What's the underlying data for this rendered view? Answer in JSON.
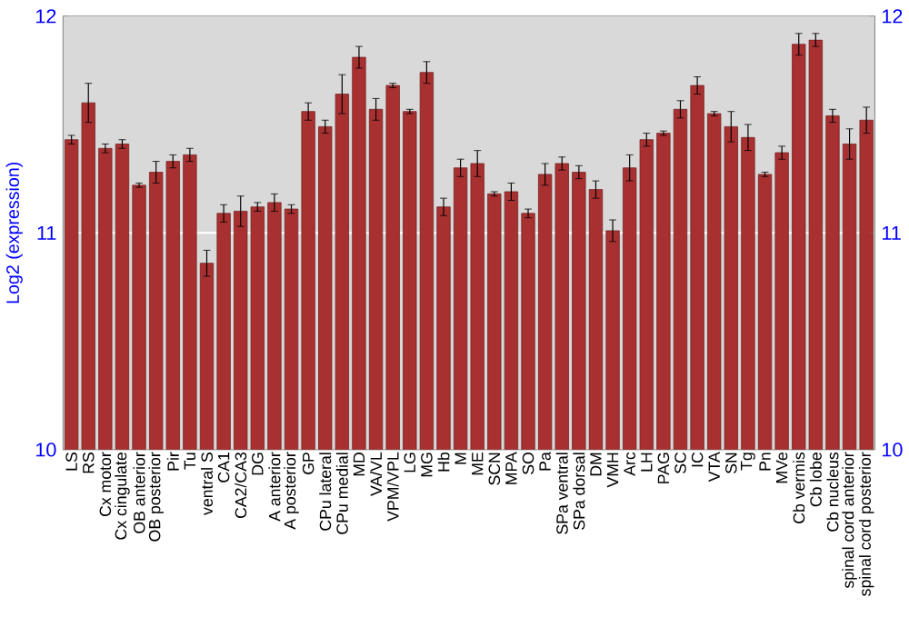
{
  "chart_data": {
    "type": "bar",
    "ylabel": "Log2 (expression)",
    "categories": [
      "LS",
      "RS",
      "Cx motor",
      "Cx cingulate",
      "OB anterior",
      "OB posterior",
      "Pir",
      "Tu",
      "ventral S",
      "CA1",
      "CA2/CA3",
      "DG",
      "A anterior",
      "A posterior",
      "GP",
      "CPu lateral",
      "CPu medial",
      "MD",
      "VA/VL",
      "VPM/VPL",
      "LG",
      "MG",
      "Hb",
      "M",
      "ME",
      "SCN",
      "MPA",
      "SO",
      "Pa",
      "SPa ventral",
      "SPa dorsal",
      "DM",
      "VMH",
      "Arc",
      "LH",
      "PAG",
      "SC",
      "IC",
      "VTA",
      "SN",
      "Tg",
      "Pn",
      "MVe",
      "Cb vermis",
      "Cb lobe",
      "Cb nucleus",
      "spinal cord anterior",
      "spinal cord posterior"
    ],
    "values": [
      11.43,
      11.6,
      11.39,
      11.41,
      11.22,
      11.28,
      11.33,
      11.36,
      10.86,
      11.09,
      11.1,
      11.12,
      11.14,
      11.11,
      11.56,
      11.49,
      11.64,
      11.81,
      11.57,
      11.68,
      11.56,
      11.74,
      11.12,
      11.3,
      11.32,
      11.18,
      11.19,
      11.09,
      11.27,
      11.32,
      11.28,
      11.2,
      11.01,
      11.3,
      11.43,
      11.46,
      11.57,
      11.68,
      11.55,
      11.49,
      11.44,
      11.27,
      11.37,
      11.87,
      11.89,
      11.54,
      11.41,
      11.52
    ],
    "errors": [
      0.02,
      0.09,
      0.02,
      0.02,
      0.01,
      0.05,
      0.03,
      0.03,
      0.06,
      0.04,
      0.07,
      0.02,
      0.04,
      0.02,
      0.04,
      0.03,
      0.09,
      0.05,
      0.05,
      0.01,
      0.01,
      0.05,
      0.04,
      0.04,
      0.06,
      0.01,
      0.04,
      0.02,
      0.05,
      0.03,
      0.03,
      0.04,
      0.05,
      0.06,
      0.03,
      0.01,
      0.04,
      0.04,
      0.01,
      0.07,
      0.06,
      0.01,
      0.03,
      0.05,
      0.03,
      0.03,
      0.07,
      0.06
    ],
    "color": "#a83030",
    "ylim": [
      10,
      12
    ],
    "yticks": [
      10,
      11,
      12
    ],
    "y2lim": [
      10,
      12
    ],
    "y2ticks": [
      10,
      11,
      12
    ],
    "grid": "y"
  }
}
